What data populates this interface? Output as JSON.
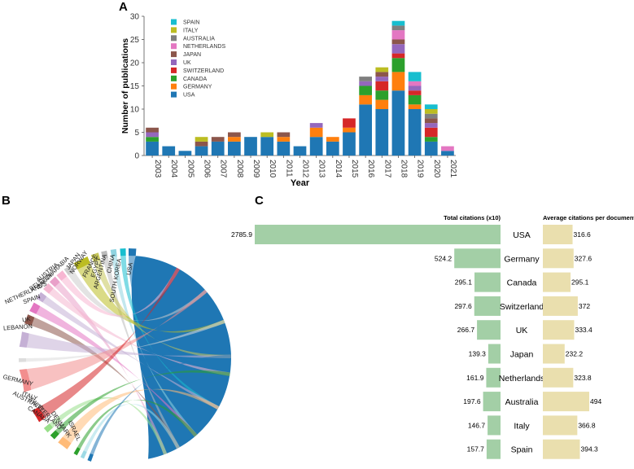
{
  "panels": {
    "a": "A",
    "b": "B",
    "c": "C"
  },
  "colors": {
    "USA": "#1f77b4",
    "GERMANY": "#ff7f0e",
    "CANADA": "#2ca02c",
    "SWITZERLAND": "#d62728",
    "UK": "#9467bd",
    "JAPAN": "#8c564b",
    "NETHERLANDS": "#e377c2",
    "AUSTRALIA": "#7f7f7f",
    "ITALY": "#bcbd22",
    "SPAIN": "#17becf",
    "green_bar": "#a3cfa6",
    "tan_bar": "#eadfae"
  },
  "chart_data": [
    {
      "id": "panel-a",
      "type": "bar",
      "stacked": true,
      "xlabel": "Year",
      "ylabel": "Number of publications",
      "ylim": [
        0,
        30
      ],
      "yticks": [
        0,
        5,
        10,
        15,
        20,
        25,
        30
      ],
      "categories": [
        "2003",
        "2004",
        "2005",
        "2006",
        "2007",
        "2008",
        "2009",
        "2010",
        "2011",
        "2012",
        "2013",
        "2014",
        "2015",
        "2016",
        "2017",
        "2018",
        "2019",
        "2020",
        "2021"
      ],
      "legend": [
        "SPAIN",
        "ITALY",
        "AUSTRALIA",
        "NETHERLANDS",
        "JAPAN",
        "UK",
        "SWITZERLAND",
        "CANADA",
        "GERMANY",
        "USA"
      ],
      "legend_position": "top-left",
      "series": [
        {
          "name": "USA",
          "values": [
            3,
            2,
            1,
            2,
            3,
            3,
            4,
            4,
            3,
            2,
            4,
            3,
            5,
            11,
            10,
            14,
            10,
            3,
            1
          ]
        },
        {
          "name": "GERMANY",
          "values": [
            0,
            0,
            0,
            0,
            0,
            1,
            0,
            0,
            1,
            0,
            2,
            1,
            1,
            2,
            2,
            4,
            1,
            0,
            0
          ]
        },
        {
          "name": "CANADA",
          "values": [
            1,
            0,
            0,
            0,
            0,
            0,
            0,
            0,
            0,
            0,
            0,
            0,
            0,
            2,
            2,
            3,
            2,
            1,
            0
          ]
        },
        {
          "name": "SWITZERLAND",
          "values": [
            0,
            0,
            0,
            0,
            0,
            0,
            0,
            0,
            0,
            0,
            0,
            0,
            2,
            0,
            2,
            1,
            1,
            2,
            0
          ]
        },
        {
          "name": "UK",
          "values": [
            1,
            0,
            0,
            0,
            0,
            0,
            0,
            0,
            0,
            0,
            1,
            0,
            0,
            1,
            1,
            2,
            1,
            1,
            0
          ]
        },
        {
          "name": "JAPAN",
          "values": [
            1,
            0,
            0,
            1,
            1,
            1,
            0,
            0,
            1,
            0,
            0,
            0,
            0,
            0,
            1,
            1,
            0,
            1,
            0
          ]
        },
        {
          "name": "NETHERLANDS",
          "values": [
            0,
            0,
            0,
            0,
            0,
            0,
            0,
            0,
            0,
            0,
            0,
            0,
            0,
            0,
            0,
            2,
            1,
            0,
            1
          ]
        },
        {
          "name": "AUSTRALIA",
          "values": [
            0,
            0,
            0,
            0,
            0,
            0,
            0,
            0,
            0,
            0,
            0,
            0,
            0,
            1,
            0,
            1,
            0,
            1,
            0
          ]
        },
        {
          "name": "ITALY",
          "values": [
            0,
            0,
            0,
            1,
            0,
            0,
            0,
            1,
            0,
            0,
            0,
            0,
            0,
            0,
            1,
            0,
            0,
            1,
            0
          ]
        },
        {
          "name": "SPAIN",
          "values": [
            0,
            0,
            0,
            0,
            0,
            0,
            0,
            0,
            0,
            0,
            0,
            0,
            0,
            0,
            0,
            1,
            2,
            1,
            0
          ]
        }
      ]
    },
    {
      "id": "panel-b",
      "type": "chord",
      "countries": [
        "USA",
        "SOUTH KOREA",
        "CHINA",
        "ARGENTINA",
        "EGYPT",
        "FRANCE",
        "NORWAY",
        "JAPAN",
        "SAUDI ARABIA",
        "AUSTRIA",
        "BELGIUM",
        "NETHERLANDS",
        "SPAIN",
        "UK",
        "LEBANON",
        "GERMANY",
        "ITALY",
        "AUSTRALIA",
        "CANADA",
        "SWITZERLAND",
        "DENMARK",
        "ISRAEL"
      ]
    },
    {
      "id": "panel-c",
      "type": "bar",
      "orientation": "horizontal",
      "categories": [
        "USA",
        "Germany",
        "Canada",
        "Switzerland",
        "UK",
        "Japan",
        "Netherlands",
        "Australia",
        "Italy",
        "Spain"
      ],
      "series": [
        {
          "name": "Total citations (x10)",
          "values": [
            2785.9,
            524.2,
            295.1,
            297.6,
            266.7,
            139.3,
            161.9,
            197.6,
            146.7,
            157.7
          ]
        },
        {
          "name": "Average citations per document",
          "values": [
            316.6,
            327.6,
            295.1,
            372,
            333.4,
            232.2,
            323.8,
            494,
            366.8,
            394.3
          ]
        }
      ]
    }
  ]
}
